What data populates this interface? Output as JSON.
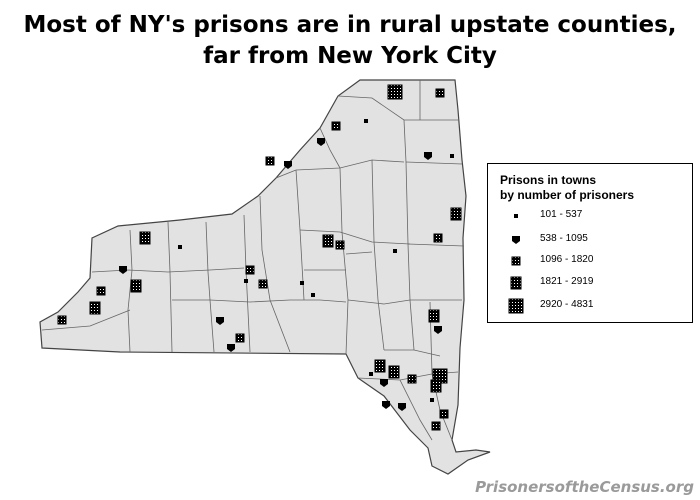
{
  "title": {
    "line1": "Most of NY's prisons are in rural upstate counties,",
    "line2": "far from New York City"
  },
  "legend": {
    "title_line1": "Prisons in towns",
    "title_line2": "by number of prisoners",
    "classes": [
      {
        "range": "101 - 537",
        "symbol": "tiny-square"
      },
      {
        "range": "538 - 1095",
        "symbol": "shield-block"
      },
      {
        "range": "1096 - 1820",
        "symbol": "small-grid"
      },
      {
        "range": "1821 - 2919",
        "symbol": "medium-grid"
      },
      {
        "range": "2920 - 4831",
        "symbol": "large-grid"
      }
    ]
  },
  "credit": "PrisonersoftheCensus.org",
  "colors": {
    "county_fill": "#e2e2e2",
    "county_border": "#555555",
    "symbol": "#000000",
    "credit": "#9a9a9a"
  }
}
